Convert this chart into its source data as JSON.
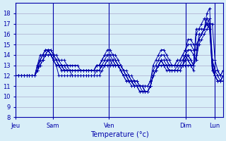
{
  "xlabel": "Temperature (°c)",
  "background_color": "#d8eef8",
  "grid_color": "#aaaacc",
  "line_color": "#0000aa",
  "ylim": [
    8,
    19
  ],
  "yticks": [
    8,
    9,
    10,
    11,
    12,
    13,
    14,
    15,
    16,
    17,
    18
  ],
  "day_labels": [
    "Jeu",
    "Sam",
    "Ven",
    "Dim",
    "Lun"
  ],
  "day_positions": [
    0.0,
    0.18,
    0.45,
    0.82,
    0.96
  ],
  "series": [
    [
      12,
      12,
      12,
      12,
      12,
      12,
      12,
      12,
      12.5,
      13,
      13.5,
      14,
      14,
      14,
      13.5,
      13.5,
      13,
      13,
      13,
      13,
      12.5,
      12.5,
      12.5,
      12.5,
      12.5,
      12.5,
      12.5,
      12.5,
      12.5,
      12.5,
      12.5,
      12.5,
      13,
      13,
      13,
      13,
      13,
      13,
      13,
      13,
      12.5,
      12.5,
      12,
      12,
      11.5,
      11.5,
      11,
      11,
      10.5,
      10.5,
      11,
      12,
      12.5,
      13,
      13,
      13,
      13,
      12.5,
      12.5,
      12.5,
      12.5,
      12.5,
      13,
      13,
      13,
      13,
      12.5,
      16,
      16.5,
      17,
      17.5,
      17,
      17,
      13,
      12,
      12,
      11.5,
      11.5,
      12
    ],
    [
      12,
      12,
      12,
      12,
      12,
      12,
      12,
      12,
      12.5,
      13,
      13.5,
      14,
      14,
      14,
      13.5,
      13,
      12,
      12,
      12,
      12,
      12,
      12,
      12,
      12,
      12,
      12,
      12,
      12,
      12,
      12,
      12.5,
      12.5,
      13,
      13,
      13.5,
      13.5,
      13,
      13,
      13,
      12.5,
      12,
      11.5,
      11.5,
      11.5,
      11,
      11,
      10.5,
      10.5,
      10.5,
      10.5,
      11,
      12,
      12.5,
      13,
      13.5,
      13,
      12.5,
      12.5,
      12.5,
      12.5,
      12.5,
      13,
      13,
      13.5,
      13.5,
      13,
      13,
      16,
      16,
      16,
      16.5,
      17,
      17,
      12.5,
      12,
      11.5,
      11.5,
      12,
      12
    ],
    [
      12,
      12,
      12,
      12,
      12,
      12,
      12,
      12,
      12.5,
      13,
      13.5,
      14,
      14.5,
      14,
      13.5,
      13,
      13,
      12.5,
      12.5,
      12.5,
      12.5,
      12,
      12,
      12,
      12,
      12,
      12,
      12,
      12,
      12,
      12,
      12,
      12.5,
      13,
      13.5,
      13.5,
      13.5,
      13,
      13,
      12.5,
      12,
      11.5,
      11.5,
      11,
      11,
      11,
      10.5,
      10.5,
      10.5,
      10.5,
      11,
      12,
      12.5,
      13,
      13.5,
      13,
      13,
      12.5,
      12.5,
      12.5,
      13,
      13,
      13,
      14,
      13.5,
      13,
      13,
      16.5,
      16.5,
      16.5,
      16.5,
      17,
      16.5,
      12.5,
      12,
      11.5,
      11.5,
      12,
      12
    ],
    [
      12,
      12,
      12,
      12,
      12,
      12,
      12,
      12,
      12.5,
      13.5,
      14,
      14,
      14.5,
      14.5,
      14,
      13.5,
      13,
      13,
      12.5,
      12.5,
      12.5,
      12.5,
      12.5,
      12.5,
      12.5,
      12.5,
      12.5,
      12.5,
      12.5,
      12.5,
      12.5,
      12.5,
      13,
      13,
      13,
      13,
      13.5,
      13.5,
      13,
      12.5,
      12,
      12,
      11.5,
      11.5,
      11,
      11,
      11,
      10.5,
      10.5,
      10.5,
      11,
      12,
      12.5,
      13,
      13.5,
      13,
      13,
      12.5,
      12.5,
      12.5,
      12.5,
      12.5,
      13,
      13.5,
      14,
      13.5,
      13,
      13.5,
      16,
      16,
      16.5,
      17,
      16.5,
      13,
      12,
      11.5,
      11.5,
      12,
      12
    ],
    [
      12,
      12,
      12,
      12,
      12,
      12,
      12,
      12,
      13,
      13.5,
      14,
      14,
      14.5,
      14,
      14,
      13.5,
      13,
      13,
      12.5,
      12.5,
      12.5,
      12.5,
      12.5,
      12.5,
      12.5,
      12.5,
      12.5,
      12.5,
      12.5,
      12.5,
      13,
      13,
      13,
      13.5,
      13.5,
      13.5,
      13.5,
      13,
      13,
      12.5,
      12,
      12,
      11.5,
      11.5,
      11,
      11,
      11,
      11,
      10.5,
      10.5,
      11,
      12,
      12.5,
      13,
      13.5,
      13.5,
      13,
      13,
      13,
      13,
      13,
      13,
      13.5,
      14,
      14,
      13.5,
      13,
      14,
      15.5,
      16,
      16.5,
      17.5,
      17,
      13,
      12,
      11.5,
      11.5,
      12,
      12
    ],
    [
      12,
      12,
      12,
      12,
      12,
      12,
      12,
      12,
      13,
      13.5,
      14,
      14.5,
      14.5,
      14,
      13.5,
      13,
      13,
      12.5,
      12.5,
      12.5,
      12.5,
      12.5,
      12.5,
      12.5,
      12.5,
      12.5,
      12.5,
      12.5,
      12.5,
      12.5,
      13,
      13,
      13.5,
      13.5,
      14,
      14,
      13.5,
      13.5,
      13,
      13,
      12.5,
      12,
      11.5,
      11.5,
      11,
      11,
      11,
      11,
      10.5,
      10.5,
      11,
      12,
      12.5,
      13,
      13.5,
      13.5,
      13.5,
      13,
      13,
      13,
      13.5,
      13.5,
      13.5,
      14,
      14.5,
      14.5,
      14,
      13.5,
      15,
      15.5,
      16,
      16.5,
      17,
      17,
      13.5,
      12.5,
      12,
      12,
      12.5
    ],
    [
      12,
      12,
      12,
      12,
      12,
      12,
      12,
      12,
      12.5,
      13.5,
      14,
      14.5,
      14.5,
      14,
      14,
      13.5,
      13.5,
      13,
      13,
      12.5,
      12.5,
      12.5,
      12.5,
      12.5,
      12.5,
      12.5,
      12.5,
      12.5,
      12.5,
      12.5,
      13,
      13,
      13.5,
      14,
      14,
      14,
      14,
      13.5,
      13,
      13,
      12.5,
      12,
      12,
      11.5,
      11.5,
      11,
      11,
      11,
      11,
      11,
      11.5,
      12.5,
      13,
      13.5,
      14,
      14,
      13.5,
      13,
      13,
      13,
      13,
      13.5,
      14,
      14.5,
      15,
      15,
      14.5,
      14.5,
      15.5,
      16,
      16.5,
      17,
      17.5,
      13.5,
      12.5,
      12,
      12,
      12.5
    ],
    [
      12,
      12,
      12,
      12,
      12,
      12,
      12,
      12,
      13,
      14,
      14,
      14.5,
      14.5,
      14.5,
      14,
      14,
      13.5,
      13.5,
      13.5,
      13,
      13,
      13,
      13,
      13,
      12.5,
      12.5,
      12.5,
      12.5,
      12.5,
      12.5,
      13,
      13,
      13.5,
      14,
      14.5,
      14.5,
      14,
      14,
      13.5,
      13,
      12.5,
      12,
      12,
      11.5,
      11.5,
      11.5,
      11,
      11,
      11,
      11,
      11.5,
      13,
      13.5,
      14,
      14.5,
      14.5,
      14,
      13.5,
      13,
      13,
      13.5,
      13.5,
      14,
      14.5,
      15.5,
      15.5,
      15,
      15,
      15.5,
      16,
      16.5,
      18,
      18.5,
      13.5,
      12.5,
      12.5,
      12,
      12.5
    ]
  ]
}
